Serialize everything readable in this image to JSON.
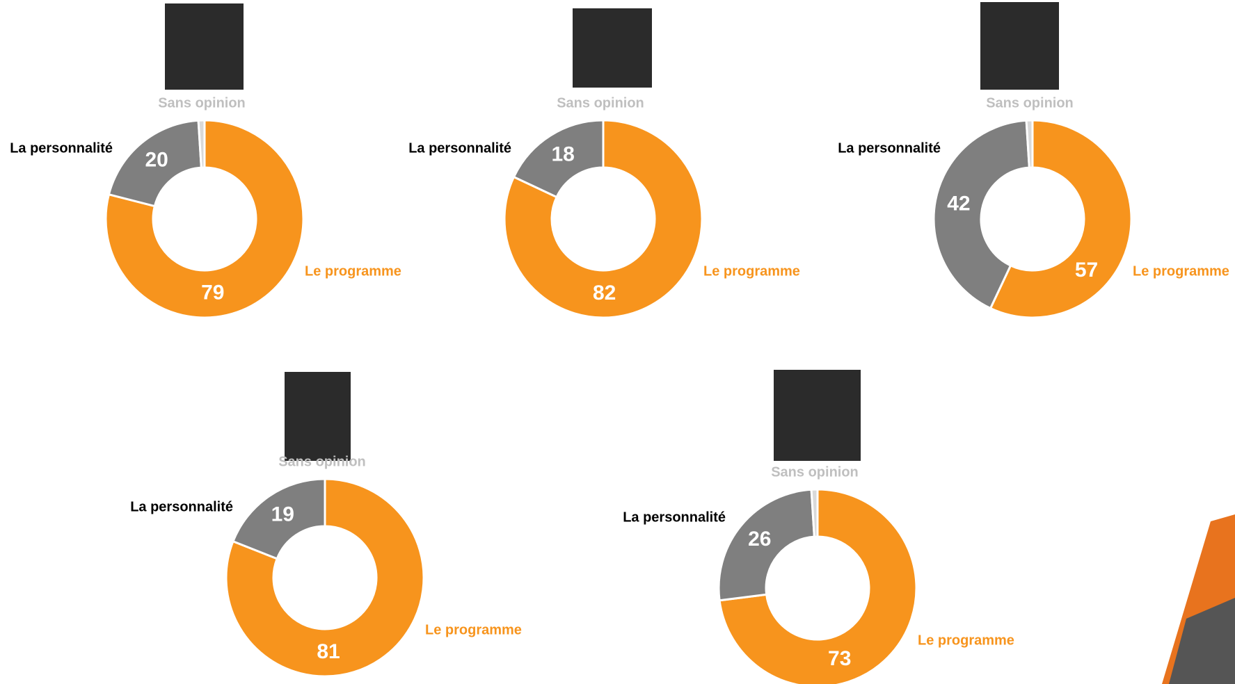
{
  "chart_data": [
    {
      "type": "donut",
      "categories": [
        "Le programme",
        "La personnalité",
        "Sans opinion"
      ],
      "values": [
        79,
        20,
        1
      ],
      "colors": [
        "#F7941D",
        "#7F7F7F",
        "#D9D9D9"
      ],
      "label_colors": [
        "#F7941D",
        "#000000",
        "#BFBFBF"
      ]
    },
    {
      "type": "donut",
      "categories": [
        "Le programme",
        "La personnalité",
        "Sans opinion"
      ],
      "values": [
        82,
        18,
        0
      ],
      "colors": [
        "#F7941D",
        "#7F7F7F",
        "#D9D9D9"
      ],
      "label_colors": [
        "#F7941D",
        "#000000",
        "#BFBFBF"
      ]
    },
    {
      "type": "donut",
      "categories": [
        "Le programme",
        "La personnalité",
        "Sans opinion"
      ],
      "values": [
        57,
        42,
        1
      ],
      "colors": [
        "#F7941D",
        "#7F7F7F",
        "#D9D9D9"
      ],
      "label_colors": [
        "#F7941D",
        "#000000",
        "#BFBFBF"
      ]
    },
    {
      "type": "donut",
      "categories": [
        "Le programme",
        "La personnalité",
        "Sans opinion"
      ],
      "values": [
        81,
        19,
        0
      ],
      "colors": [
        "#F7941D",
        "#7F7F7F",
        "#D9D9D9"
      ],
      "label_colors": [
        "#F7941D",
        "#000000",
        "#BFBFBF"
      ]
    },
    {
      "type": "donut",
      "categories": [
        "Le programme",
        "La personnalité",
        "Sans opinion"
      ],
      "values": [
        73,
        26,
        1
      ],
      "colors": [
        "#F7941D",
        "#7F7F7F",
        "#D9D9D9"
      ],
      "label_colors": [
        "#F7941D",
        "#000000",
        "#BFBFBF"
      ]
    }
  ]
}
